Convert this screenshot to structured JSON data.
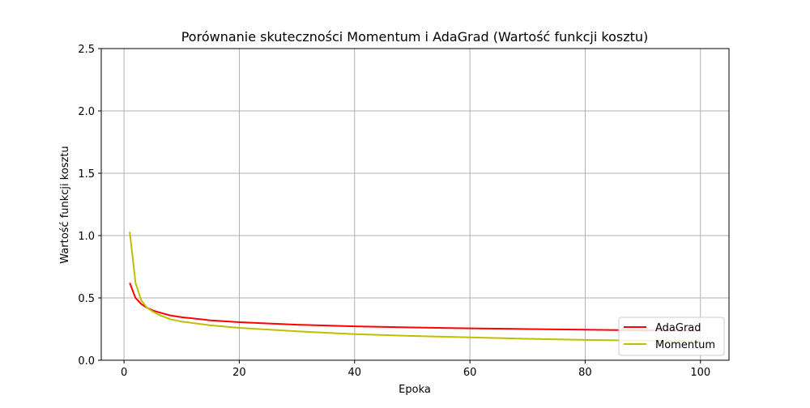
{
  "chart_data": {
    "type": "line",
    "title": "Porównanie skuteczności Momentum i AdaGrad (Wartość funkcji kosztu)",
    "xlabel": "Epoka",
    "ylabel": "Wartość funkcji kosztu",
    "xlim": [
      -3.95,
      104.95
    ],
    "ylim": [
      0,
      2.5
    ],
    "xticks": [
      0,
      20,
      40,
      60,
      80,
      100
    ],
    "yticks": [
      0.0,
      0.5,
      1.0,
      1.5,
      2.0,
      2.5
    ],
    "ytick_labels": [
      "0.0",
      "0.5",
      "1.0",
      "1.5",
      "2.0",
      "2.5"
    ],
    "grid": true,
    "legend_position": "lower right",
    "series": [
      {
        "name": "AdaGrad",
        "color": "#ff0000",
        "x": [
          1,
          2,
          3,
          4,
          5,
          6,
          8,
          10,
          15,
          20,
          30,
          40,
          50,
          60,
          70,
          80,
          90,
          100
        ],
        "y": [
          0.62,
          0.5,
          0.45,
          0.42,
          0.4,
          0.385,
          0.36,
          0.345,
          0.32,
          0.305,
          0.285,
          0.272,
          0.263,
          0.256,
          0.25,
          0.245,
          0.24,
          0.237
        ]
      },
      {
        "name": "Momentum",
        "color": "#bfbf00",
        "x": [
          1,
          2,
          3,
          4,
          5,
          6,
          8,
          10,
          15,
          20,
          30,
          40,
          50,
          60,
          70,
          80,
          90,
          100
        ],
        "y": [
          1.03,
          0.62,
          0.48,
          0.42,
          0.39,
          0.365,
          0.33,
          0.31,
          0.28,
          0.26,
          0.232,
          0.21,
          0.195,
          0.183,
          0.172,
          0.163,
          0.157,
          0.153
        ]
      }
    ]
  }
}
